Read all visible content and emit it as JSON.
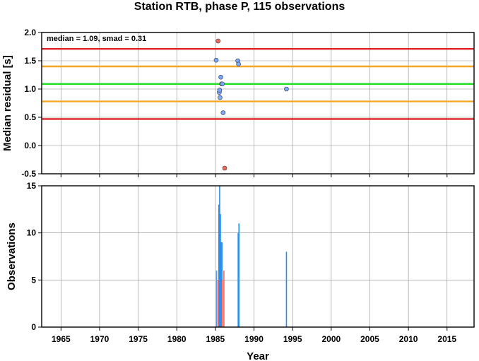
{
  "chart_data": [
    {
      "type": "scatter",
      "title": "Station RTB, phase P, 115 observations",
      "xlabel": "",
      "ylabel": "Median residual [s]",
      "xlim": [
        1962.5,
        2018.5
      ],
      "ylim": [
        -0.5,
        2.0
      ],
      "x_ticks": [
        "1965",
        "1970",
        "1975",
        "1980",
        "1985",
        "1990",
        "1995",
        "2000",
        "2005",
        "2010",
        "2015"
      ],
      "y_ticks": [
        "-0.5",
        "0.0",
        "0.5",
        "1.0",
        "1.5",
        "2.0"
      ],
      "grid": true,
      "annotation": "median = 1.09, smad = 0.31",
      "reference_lines": [
        {
          "y": 1.09,
          "color": "#22dd22"
        },
        {
          "y": 1.4,
          "color": "#f5a623"
        },
        {
          "y": 0.78,
          "color": "#f5a623"
        },
        {
          "y": 1.71,
          "color": "#e02020"
        },
        {
          "y": 0.47,
          "color": "#e02020"
        }
      ],
      "series": [
        {
          "color": "#7aa8ff",
          "points": [
            [
              1985.1,
              1.51
            ],
            [
              1985.5,
              0.94
            ],
            [
              1985.55,
              0.98
            ],
            [
              1985.6,
              0.85
            ],
            [
              1985.7,
              1.21
            ],
            [
              1985.8,
              1.09
            ],
            [
              1985.9,
              1.09
            ],
            [
              1986.0,
              0.58
            ],
            [
              1987.9,
              1.5
            ],
            [
              1988.0,
              1.44
            ],
            [
              1994.2,
              1.0
            ]
          ]
        },
        {
          "color": "#f46a5a",
          "points": [
            [
              1985.35,
              1.85
            ],
            [
              1986.2,
              -0.4
            ]
          ]
        }
      ]
    },
    {
      "type": "bar",
      "xlabel": "Year",
      "ylabel": "Observations",
      "xlim": [
        1962.5,
        2018.5
      ],
      "ylim": [
        0,
        15
      ],
      "x_ticks": [
        "1965",
        "1970",
        "1975",
        "1980",
        "1985",
        "1990",
        "1995",
        "2000",
        "2005",
        "2010",
        "2015"
      ],
      "y_ticks": [
        "0",
        "5",
        "10",
        "15"
      ],
      "grid": true,
      "series": [
        {
          "color": "#2a8ff0",
          "bars": [
            [
              1985.15,
              6
            ],
            [
              1985.45,
              13
            ],
            [
              1985.55,
              15
            ],
            [
              1985.65,
              12
            ],
            [
              1985.75,
              9
            ],
            [
              1985.85,
              9
            ],
            [
              1987.95,
              10
            ],
            [
              1988.05,
              11
            ],
            [
              1994.2,
              8
            ]
          ]
        },
        {
          "color": "#f46a5a",
          "bars": [
            [
              1985.35,
              5
            ],
            [
              1985.9,
              5
            ],
            [
              1986.1,
              6
            ]
          ]
        },
        {
          "color": "#c8c8c8",
          "bars": [
            [
              1985.05,
              6
            ]
          ]
        }
      ]
    }
  ]
}
